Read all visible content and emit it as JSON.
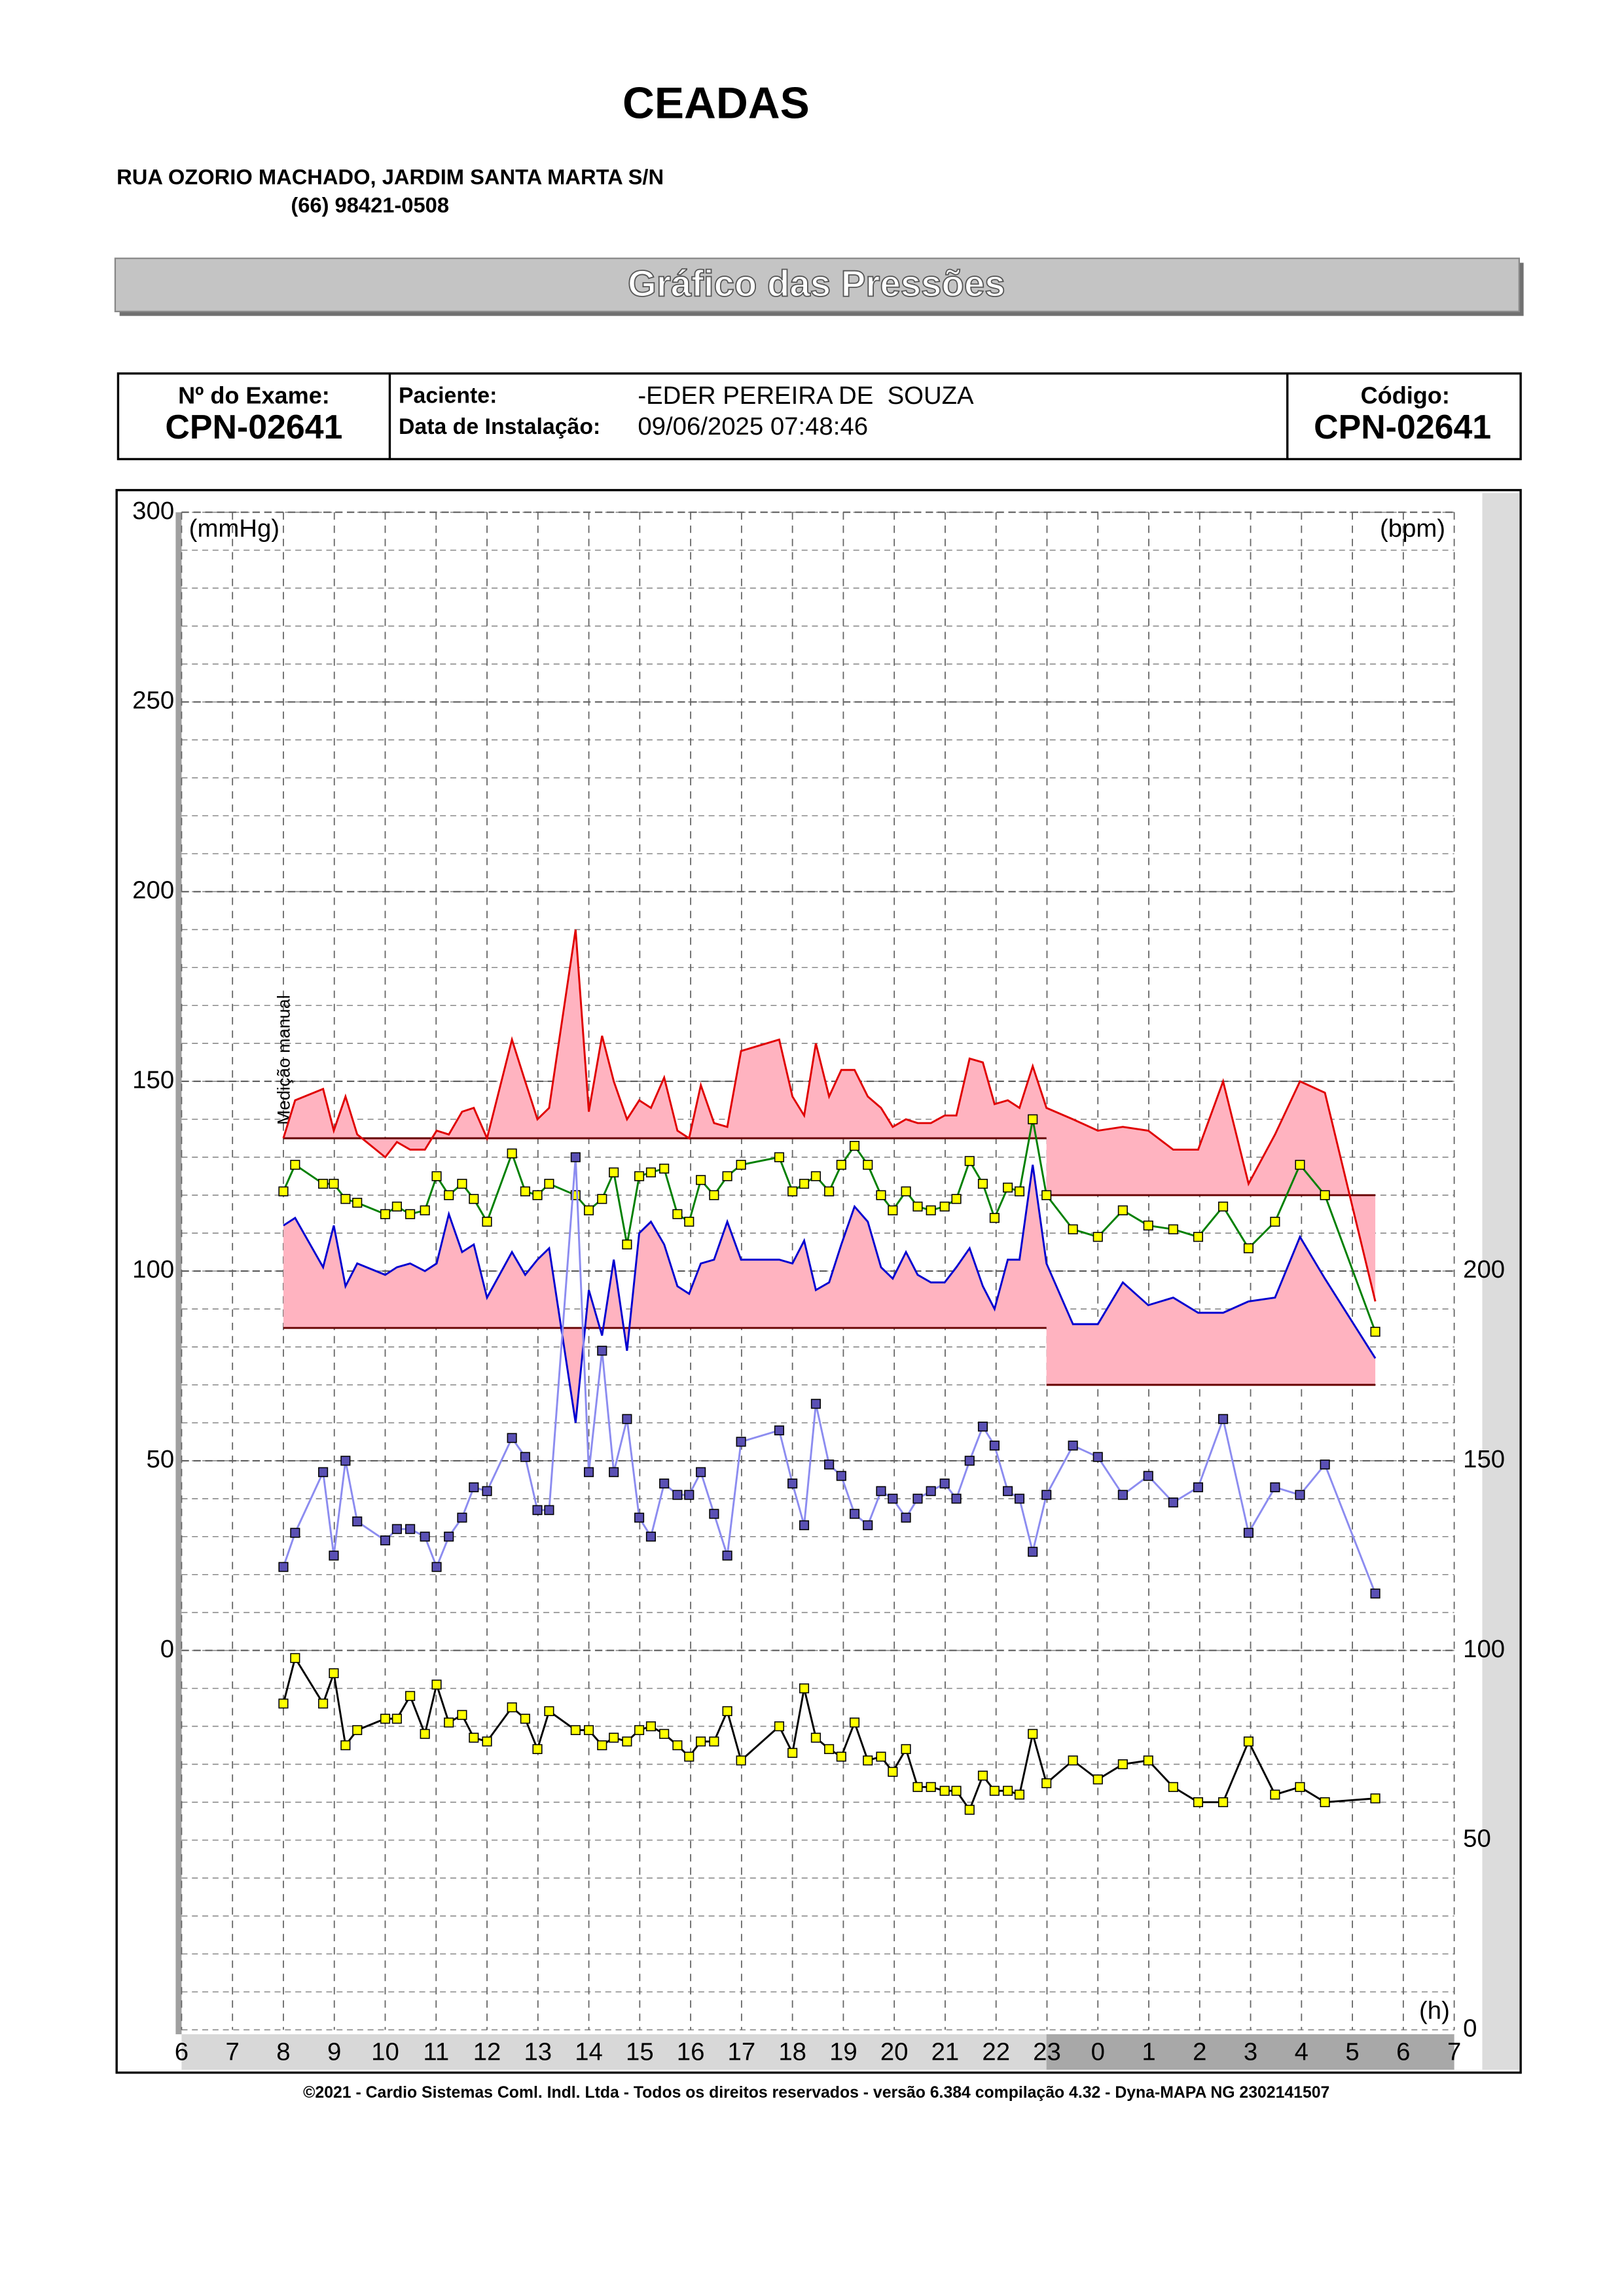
{
  "header": {
    "title": "CEADAS",
    "address": "RUA OZORIO MACHADO, JARDIM SANTA MARTA S/N",
    "phone": "(66) 98421-0508"
  },
  "banner": "Gráfico das Pressões",
  "exam": {
    "exam_label": "Nº do Exame:",
    "exam_value": "CPN-02641",
    "patient_label": "Paciente:",
    "patient": "-EDER PEREIRA DE  SOUZA",
    "install_label": "Data de Instalação:",
    "install": "09/06/2025 07:48:46",
    "code_label": "Código:",
    "code": "CPN-02641"
  },
  "chart_data": {
    "type": "line",
    "y_label": "(mmHg)",
    "y2_label": "(bpm)",
    "x_label": "(h)",
    "annotation": "Medição manual",
    "xlim": [
      6,
      31
    ],
    "xticks": [
      6,
      7,
      8,
      9,
      10,
      11,
      12,
      13,
      14,
      15,
      16,
      17,
      18,
      19,
      20,
      21,
      22,
      23,
      {
        "value": 24,
        "label": "0"
      },
      {
        "value": 25,
        "label": "1"
      },
      {
        "value": 26,
        "label": "2"
      },
      {
        "value": 27,
        "label": "3"
      },
      {
        "value": 28,
        "label": "4"
      },
      {
        "value": 29,
        "label": "5"
      },
      {
        "value": 30,
        "label": "6"
      },
      {
        "value": 31,
        "label": "7"
      }
    ],
    "ylim": [
      -100,
      300
    ],
    "yticks": [
      0,
      50,
      100,
      150,
      200,
      250,
      300
    ],
    "y2lim": [
      0,
      400
    ],
    "y2ticks": [
      0,
      50,
      100,
      150,
      200
    ],
    "yminorticks": [
      -100,
      -90,
      -80,
      -70,
      -60,
      -50,
      -40,
      -30,
      -20,
      -10,
      0,
      10,
      20,
      30,
      40,
      50,
      60,
      70,
      80,
      90,
      100,
      110,
      120,
      130,
      140,
      150,
      160,
      170,
      180,
      190,
      200,
      210,
      220,
      230,
      240,
      250,
      260,
      270,
      280,
      290,
      300
    ],
    "grid": true,
    "x": [
      8.0,
      8.23,
      8.78,
      8.99,
      9.22,
      9.45,
      10.0,
      10.23,
      10.49,
      10.78,
      11.01,
      11.25,
      11.51,
      11.74,
      12.0,
      12.49,
      12.75,
      12.99,
      13.22,
      13.74,
      14.0,
      14.26,
      14.49,
      14.75,
      14.99,
      15.22,
      15.48,
      15.74,
      15.97,
      16.2,
      16.46,
      16.72,
      16.99,
      17.74,
      18.0,
      18.23,
      18.46,
      18.72,
      18.96,
      19.22,
      19.48,
      19.74,
      19.97,
      20.23,
      20.46,
      20.72,
      20.99,
      21.22,
      21.48,
      21.74,
      21.97,
      22.23,
      22.46,
      22.72,
      22.99,
      23.51,
      24.0,
      24.49,
      24.99,
      25.48,
      25.97,
      26.46,
      26.96,
      27.48,
      27.97,
      28.46,
      29.45
    ],
    "series": [
      {
        "color": "#e00000",
        "fill": "#ffb3c0",
        "limit": [
          [
            8.0,
            22.99,
            135
          ],
          [
            22.99,
            29.45,
            120
          ]
        ],
        "values": [
          135,
          145,
          148,
          137,
          146,
          136,
          130,
          134,
          132,
          132,
          137,
          136,
          142,
          143,
          135,
          161,
          150,
          140,
          143,
          190,
          142,
          162,
          150,
          140,
          145,
          143,
          151,
          137,
          135,
          149,
          139,
          138,
          158,
          161,
          146,
          141,
          160,
          146,
          153,
          153,
          146,
          143,
          138,
          140,
          139,
          139,
          141,
          141,
          156,
          155,
          144,
          145,
          143,
          154,
          143,
          140,
          137,
          138,
          137,
          132,
          132,
          150,
          123,
          136,
          150,
          147,
          92
        ]
      },
      {
        "color": "#0000d0",
        "fill": "#ffb3c0",
        "limit": [
          [
            8.0,
            22.99,
            85
          ],
          [
            22.99,
            29.45,
            70
          ]
        ],
        "values": [
          112,
          114,
          101,
          112,
          96,
          102,
          99,
          101,
          102,
          100,
          102,
          115,
          105,
          107,
          93,
          105,
          99,
          103,
          106,
          60,
          95,
          83,
          103,
          79,
          110,
          113,
          107,
          96,
          94,
          102,
          103,
          113,
          103,
          103,
          102,
          108,
          95,
          97,
          107,
          117,
          113,
          101,
          98,
          105,
          99,
          97,
          97,
          101,
          106,
          96,
          90,
          103,
          103,
          128,
          102,
          86,
          86,
          97,
          91,
          93,
          89,
          89,
          92,
          93,
          109,
          98,
          77
        ]
      },
      {
        "color": "#008000",
        "marker": "#ffff00",
        "values": [
          121,
          128,
          123,
          123,
          119,
          118,
          115,
          117,
          115,
          116,
          125,
          120,
          123,
          119,
          113,
          131,
          121,
          120,
          123,
          120,
          116,
          119,
          126,
          107,
          125,
          126,
          127,
          115,
          113,
          124,
          120,
          125,
          128,
          130,
          121,
          123,
          125,
          121,
          128,
          133,
          128,
          120,
          116,
          121,
          117,
          116,
          117,
          119,
          129,
          123,
          114,
          122,
          121,
          140,
          120,
          111,
          109,
          116,
          112,
          111,
          109,
          117,
          106,
          113,
          128,
          120,
          84
        ]
      },
      {
        "color": "#8c8cf0",
        "marker": "#5a50b4",
        "values": [
          22,
          31,
          47,
          25,
          50,
          34,
          29,
          32,
          32,
          30,
          22,
          30,
          35,
          43,
          42,
          56,
          51,
          37,
          37,
          130,
          47,
          79,
          47,
          61,
          35,
          30,
          44,
          41,
          41,
          47,
          36,
          25,
          55,
          58,
          44,
          33,
          65,
          49,
          46,
          36,
          33,
          42,
          40,
          35,
          40,
          42,
          44,
          40,
          50,
          59,
          54,
          42,
          40,
          26,
          41,
          54,
          51,
          41,
          46,
          39,
          43,
          61,
          31,
          43,
          41,
          49,
          15
        ]
      },
      {
        "color": "#000000",
        "marker": "#ffff00",
        "axis": "y2",
        "values": [
          86,
          98,
          86,
          94,
          75,
          79,
          82,
          82,
          88,
          78,
          91,
          81,
          83,
          77,
          76,
          85,
          82,
          74,
          84,
          79,
          79,
          75,
          77,
          76,
          79,
          80,
          78,
          75,
          72,
          76,
          76,
          84,
          71,
          80,
          73,
          90,
          77,
          74,
          72,
          81,
          71,
          72,
          68,
          74,
          64,
          64,
          63,
          63,
          58,
          67,
          63,
          63,
          62,
          78,
          65,
          71,
          66,
          70,
          71,
          64,
          60,
          60,
          76,
          62,
          64,
          60,
          61
        ]
      }
    ]
  },
  "footer": "©2021 - Cardio Sistemas Coml. Indl. Ltda - Todos os direitos reservados - versão 6.384 compilação 4.32 - Dyna-MAPA NG 2302141507"
}
